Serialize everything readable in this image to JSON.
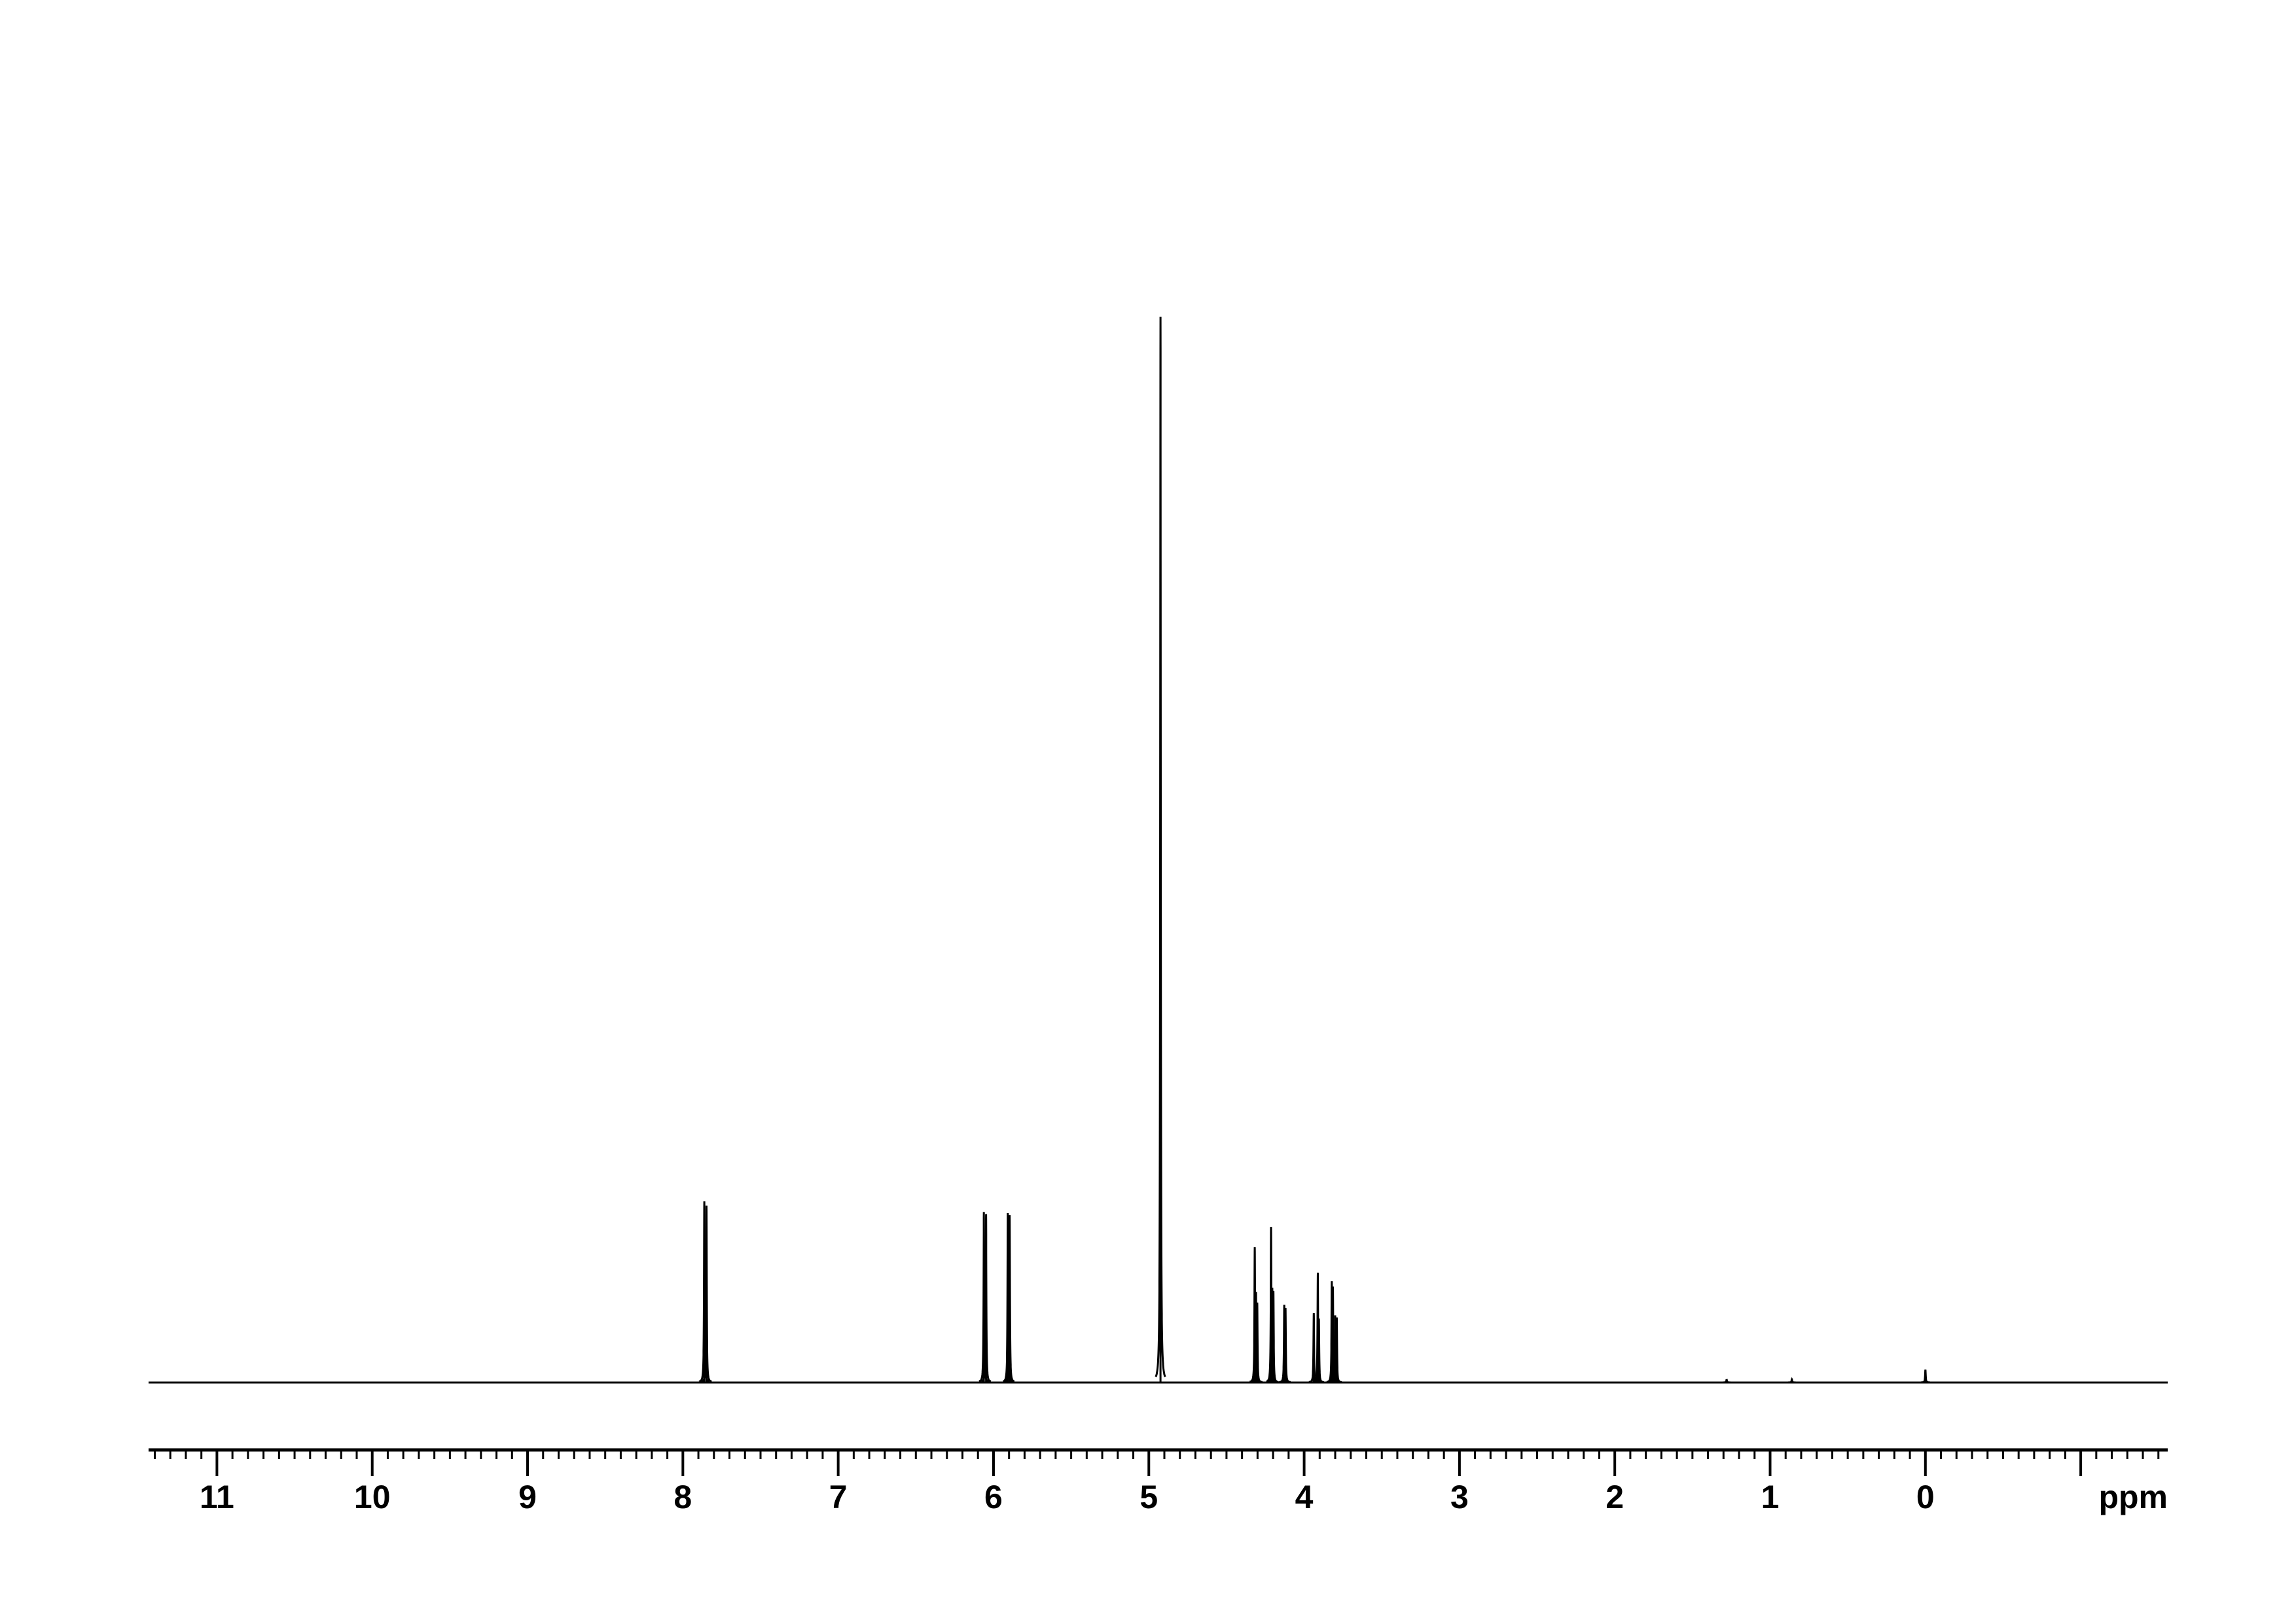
{
  "chart_data": {
    "type": "line",
    "title": "",
    "xlabel": "ppm",
    "ylabel": "",
    "xlim": [
      11.44,
      -1.56
    ],
    "x_reversed": true,
    "grid": false,
    "line_color": "#000000",
    "background": "#ffffff",
    "tick_labels": [
      "11",
      "10",
      "9",
      "8",
      "7",
      "6",
      "5",
      "4",
      "3",
      "2",
      "1",
      "0"
    ],
    "tick_values": [
      11,
      10,
      9,
      8,
      7,
      6,
      5,
      4,
      3,
      2,
      1,
      0
    ],
    "minor_tick_step": 0.1,
    "intensity_unit": "relative (tallest = 100)",
    "peaks": [
      {
        "ppm": 7.862,
        "intensity": 17.0
      },
      {
        "ppm": 7.848,
        "intensity": 16.6
      },
      {
        "ppm": 6.062,
        "intensity": 16.0
      },
      {
        "ppm": 6.048,
        "intensity": 15.8
      },
      {
        "ppm": 5.908,
        "intensity": 15.9
      },
      {
        "ppm": 5.896,
        "intensity": 15.7
      },
      {
        "ppm": 4.925,
        "intensity": 100
      },
      {
        "ppm": 4.318,
        "intensity": 12.7
      },
      {
        "ppm": 4.31,
        "intensity": 8.5
      },
      {
        "ppm": 4.302,
        "intensity": 7.5
      },
      {
        "ppm": 4.213,
        "intensity": 14.6
      },
      {
        "ppm": 4.205,
        "intensity": 8.9
      },
      {
        "ppm": 4.198,
        "intensity": 8.6
      },
      {
        "ppm": 4.128,
        "intensity": 7.3
      },
      {
        "ppm": 4.12,
        "intensity": 7.0
      },
      {
        "ppm": 3.938,
        "intensity": 6.5
      },
      {
        "ppm": 3.912,
        "intensity": 10.3
      },
      {
        "ppm": 3.905,
        "intensity": 6.0
      },
      {
        "ppm": 3.822,
        "intensity": 9.5
      },
      {
        "ppm": 3.815,
        "intensity": 9.0
      },
      {
        "ppm": 3.8,
        "intensity": 6.3
      },
      {
        "ppm": 3.79,
        "intensity": 6.1
      },
      {
        "ppm": 1.28,
        "intensity": 0.3
      },
      {
        "ppm": 0.86,
        "intensity": 0.3
      },
      {
        "ppm": 0.0,
        "intensity": 1.2
      }
    ]
  }
}
